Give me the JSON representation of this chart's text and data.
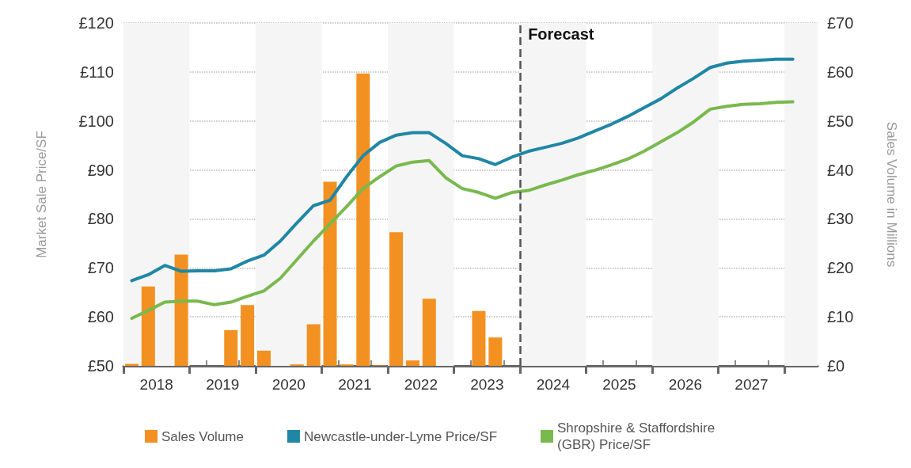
{
  "chart_data": {
    "type": "line",
    "ylabel": "Market Sale Price/SF",
    "y2label": "Sales Volume in Millions",
    "x": [
      2018.125,
      2018.375,
      2018.625,
      2018.875,
      2019.125,
      2019.375,
      2019.625,
      2019.875,
      2020.125,
      2020.375,
      2020.625,
      2020.875,
      2021.125,
      2021.375,
      2021.625,
      2021.875,
      2022.125,
      2022.375,
      2022.625,
      2022.875,
      2023.125,
      2023.375,
      2023.625,
      2023.875,
      2024.125,
      2024.375,
      2024.625,
      2024.875,
      2025.125,
      2025.375,
      2025.625,
      2025.875,
      2026.125,
      2026.375,
      2026.625,
      2026.875,
      2027.125,
      2027.375,
      2027.625,
      2027.875,
      2028.125
    ],
    "series": [
      {
        "name": "Sales Volume",
        "type": "bar",
        "axis": "y2",
        "color": "#f29121",
        "values": [
          0.4,
          16.2,
          null,
          22.7,
          null,
          null,
          7.3,
          12.4,
          3.1,
          null,
          0.3,
          8.5,
          37.6,
          0.3,
          59.7,
          0.1,
          27.3,
          1.1,
          13.7,
          null,
          null,
          11.2,
          5.8,
          null,
          null,
          null,
          null,
          null,
          null,
          null,
          null,
          null,
          null,
          null,
          null,
          null,
          null,
          null,
          null,
          null,
          null
        ]
      },
      {
        "name": "Newcastle-under-Lyme Price/SF",
        "color": "#1f87a5",
        "values": [
          67.4,
          68.6,
          70.5,
          69.3,
          69.4,
          69.4,
          69.8,
          71.4,
          72.6,
          75.5,
          79.2,
          82.7,
          83.8,
          88.6,
          92.9,
          95.6,
          97.1,
          97.6,
          97.6,
          95.4,
          92.9,
          92.3,
          91.1,
          92.6,
          93.8,
          94.6,
          95.4,
          96.5,
          97.9,
          99.3,
          100.9,
          102.7,
          104.5,
          106.7,
          108.7,
          110.9,
          111.8,
          112.2,
          112.4,
          112.6,
          112.6
        ]
      },
      {
        "name": "Shropshire & Staffordshire (GBR) Price/SF",
        "color": "#79b94e",
        "values": [
          59.7,
          61.3,
          63.0,
          63.2,
          63.2,
          62.5,
          63.0,
          64.2,
          65.3,
          67.9,
          71.7,
          75.5,
          79.0,
          82.5,
          86.2,
          88.6,
          90.8,
          91.6,
          91.9,
          88.4,
          86.2,
          85.4,
          84.2,
          85.4,
          85.8,
          86.9,
          87.9,
          89.0,
          89.9,
          91.0,
          92.2,
          93.8,
          95.7,
          97.6,
          99.8,
          102.4,
          103.0,
          103.4,
          103.5,
          103.8,
          103.9
        ]
      }
    ],
    "xlim": [
      2018,
      2028.5
    ],
    "xticks": [
      {
        "value": 2018,
        "label": null
      },
      {
        "value": 2018.25,
        "label": null
      },
      {
        "value": 2018.5,
        "label": "2018"
      },
      {
        "value": 2018.75,
        "label": null
      },
      {
        "value": 2019,
        "label": null
      },
      {
        "value": 2019.25,
        "label": null
      },
      {
        "value": 2019.5,
        "label": "2019"
      },
      {
        "value": 2019.75,
        "label": null
      },
      {
        "value": 2020,
        "label": null
      },
      {
        "value": 2020.25,
        "label": null
      },
      {
        "value": 2020.5,
        "label": "2020"
      },
      {
        "value": 2020.75,
        "label": null
      },
      {
        "value": 2021,
        "label": null
      },
      {
        "value": 2021.25,
        "label": null
      },
      {
        "value": 2021.5,
        "label": "2021"
      },
      {
        "value": 2021.75,
        "label": null
      },
      {
        "value": 2022,
        "label": null
      },
      {
        "value": 2022.25,
        "label": null
      },
      {
        "value": 2022.5,
        "label": "2022"
      },
      {
        "value": 2022.75,
        "label": null
      },
      {
        "value": 2023,
        "label": null
      },
      {
        "value": 2023.25,
        "label": null
      },
      {
        "value": 2023.5,
        "label": "2023"
      },
      {
        "value": 2023.75,
        "label": null
      },
      {
        "value": 2024,
        "label": null
      },
      {
        "value": 2024.25,
        "label": null
      },
      {
        "value": 2024.5,
        "label": "2024"
      },
      {
        "value": 2024.75,
        "label": null
      },
      {
        "value": 2025,
        "label": null
      },
      {
        "value": 2025.25,
        "label": null
      },
      {
        "value": 2025.5,
        "label": "2025"
      },
      {
        "value": 2025.75,
        "label": null
      },
      {
        "value": 2026,
        "label": null
      },
      {
        "value": 2026.25,
        "label": null
      },
      {
        "value": 2026.5,
        "label": "2026"
      },
      {
        "value": 2026.75,
        "label": null
      },
      {
        "value": 2027,
        "label": null
      },
      {
        "value": 2027.25,
        "label": null
      },
      {
        "value": 2027.5,
        "label": "2027"
      },
      {
        "value": 2027.75,
        "label": null
      },
      {
        "value": 2028,
        "label": null
      },
      {
        "value": 2028.25,
        "label": null
      }
    ],
    "ylim": [
      50,
      120
    ],
    "yticks": [
      {
        "value": 50,
        "label": "£50"
      },
      {
        "value": 60,
        "label": "£60"
      },
      {
        "value": 70,
        "label": "£70"
      },
      {
        "value": 80,
        "label": "£80"
      },
      {
        "value": 90,
        "label": "£90"
      },
      {
        "value": 100,
        "label": "£100"
      },
      {
        "value": 110,
        "label": "£110"
      },
      {
        "value": 120,
        "label": "£120"
      }
    ],
    "y2lim": [
      0,
      70
    ],
    "y2ticks": [
      {
        "value": 0,
        "label": "£0"
      },
      {
        "value": 10,
        "label": "£10"
      },
      {
        "value": 20,
        "label": "£20"
      },
      {
        "value": 30,
        "label": "£30"
      },
      {
        "value": 40,
        "label": "£40"
      },
      {
        "value": 50,
        "label": "£50"
      },
      {
        "value": 60,
        "label": "£60"
      },
      {
        "value": 70,
        "label": "£70"
      }
    ],
    "ref_lines": [
      {
        "axis": "x",
        "value": 2024,
        "label": "Forecast",
        "color": "#555555",
        "line_style": "dashed"
      }
    ],
    "bands": [
      {
        "axis": "x",
        "from": 2018,
        "to": 2019,
        "color": "#f5f5f5"
      },
      {
        "axis": "x",
        "from": 2020,
        "to": 2021,
        "color": "#f5f5f5"
      },
      {
        "axis": "x",
        "from": 2022,
        "to": 2023,
        "color": "#f5f5f5"
      },
      {
        "axis": "x",
        "from": 2024,
        "to": 2025,
        "color": "#f5f5f5"
      },
      {
        "axis": "x",
        "from": 2026,
        "to": 2027,
        "color": "#f5f5f5"
      },
      {
        "axis": "x",
        "from": 2028,
        "to": 2028.5,
        "color": "#f5f5f5"
      }
    ],
    "grid": "y",
    "legend": "bottom",
    "marker": "none",
    "line_style": "solid"
  }
}
